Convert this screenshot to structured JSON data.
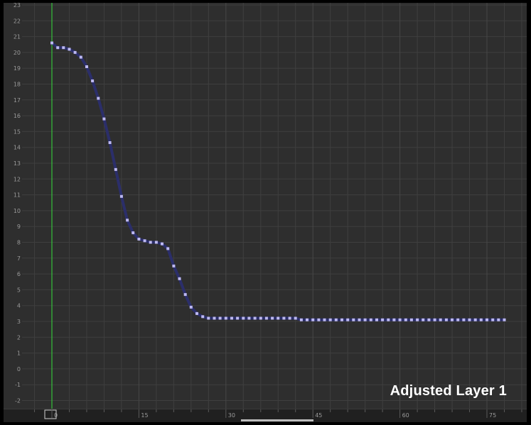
{
  "layer": {
    "name": "Adjusted Layer 1"
  },
  "colors": {
    "background": "#2e2e2e",
    "grid": "#3f3f3f",
    "curve": "#2b2e6a",
    "keyframe": "#bcb8f0",
    "playhead": "#35c23a"
  },
  "chart_data": {
    "type": "line",
    "title": "",
    "xlabel": "",
    "ylabel": "",
    "xlim": [
      -4,
      80
    ],
    "ylim": [
      -2.6,
      23
    ],
    "yticks": [
      "23",
      "22",
      "21",
      "20",
      "19",
      "18",
      "17",
      "16",
      "15",
      "14",
      "13",
      "12",
      "11",
      "10",
      "9",
      "8",
      "7",
      "6",
      "5",
      "4",
      "3",
      "2",
      "1",
      "0",
      "-1",
      "-2"
    ],
    "xticks": [
      "0",
      "15",
      "30",
      "45",
      "60",
      "75"
    ],
    "playhead_frame": 0,
    "series": [
      {
        "x": [
          0,
          1,
          2,
          3,
          4,
          5,
          6,
          7,
          8,
          9,
          10,
          11,
          12,
          13,
          14,
          15,
          16,
          17,
          18,
          19,
          20,
          21,
          22,
          23,
          24,
          25,
          26,
          27,
          28,
          29,
          30,
          31,
          32,
          33,
          34,
          35,
          36,
          37,
          38,
          39,
          40,
          41,
          42,
          43,
          44,
          45,
          46,
          47,
          48,
          49,
          50,
          51,
          52,
          53,
          54,
          55,
          56,
          57,
          58,
          59,
          60,
          61,
          62,
          63,
          64,
          65,
          66,
          67,
          68,
          69,
          70,
          71,
          72,
          73,
          74,
          75,
          76,
          77,
          78
        ],
        "values": [
          20.6,
          20.3,
          20.3,
          20.2,
          20.0,
          19.7,
          19.1,
          18.2,
          17.1,
          15.8,
          14.3,
          12.6,
          10.9,
          9.4,
          8.6,
          8.2,
          8.1,
          8.0,
          8.0,
          7.9,
          7.6,
          6.5,
          5.7,
          4.7,
          3.9,
          3.5,
          3.3,
          3.2,
          3.2,
          3.2,
          3.2,
          3.2,
          3.2,
          3.2,
          3.2,
          3.2,
          3.2,
          3.2,
          3.2,
          3.2,
          3.2,
          3.2,
          3.2,
          3.1,
          3.1,
          3.1,
          3.1,
          3.1,
          3.1,
          3.1,
          3.1,
          3.1,
          3.1,
          3.1,
          3.1,
          3.1,
          3.1,
          3.1,
          3.1,
          3.1,
          3.1,
          3.1,
          3.1,
          3.1,
          3.1,
          3.1,
          3.1,
          3.1,
          3.1,
          3.1,
          3.1,
          3.1,
          3.1,
          3.1,
          3.1,
          3.1,
          3.1,
          3.1,
          3.1
        ]
      }
    ]
  }
}
